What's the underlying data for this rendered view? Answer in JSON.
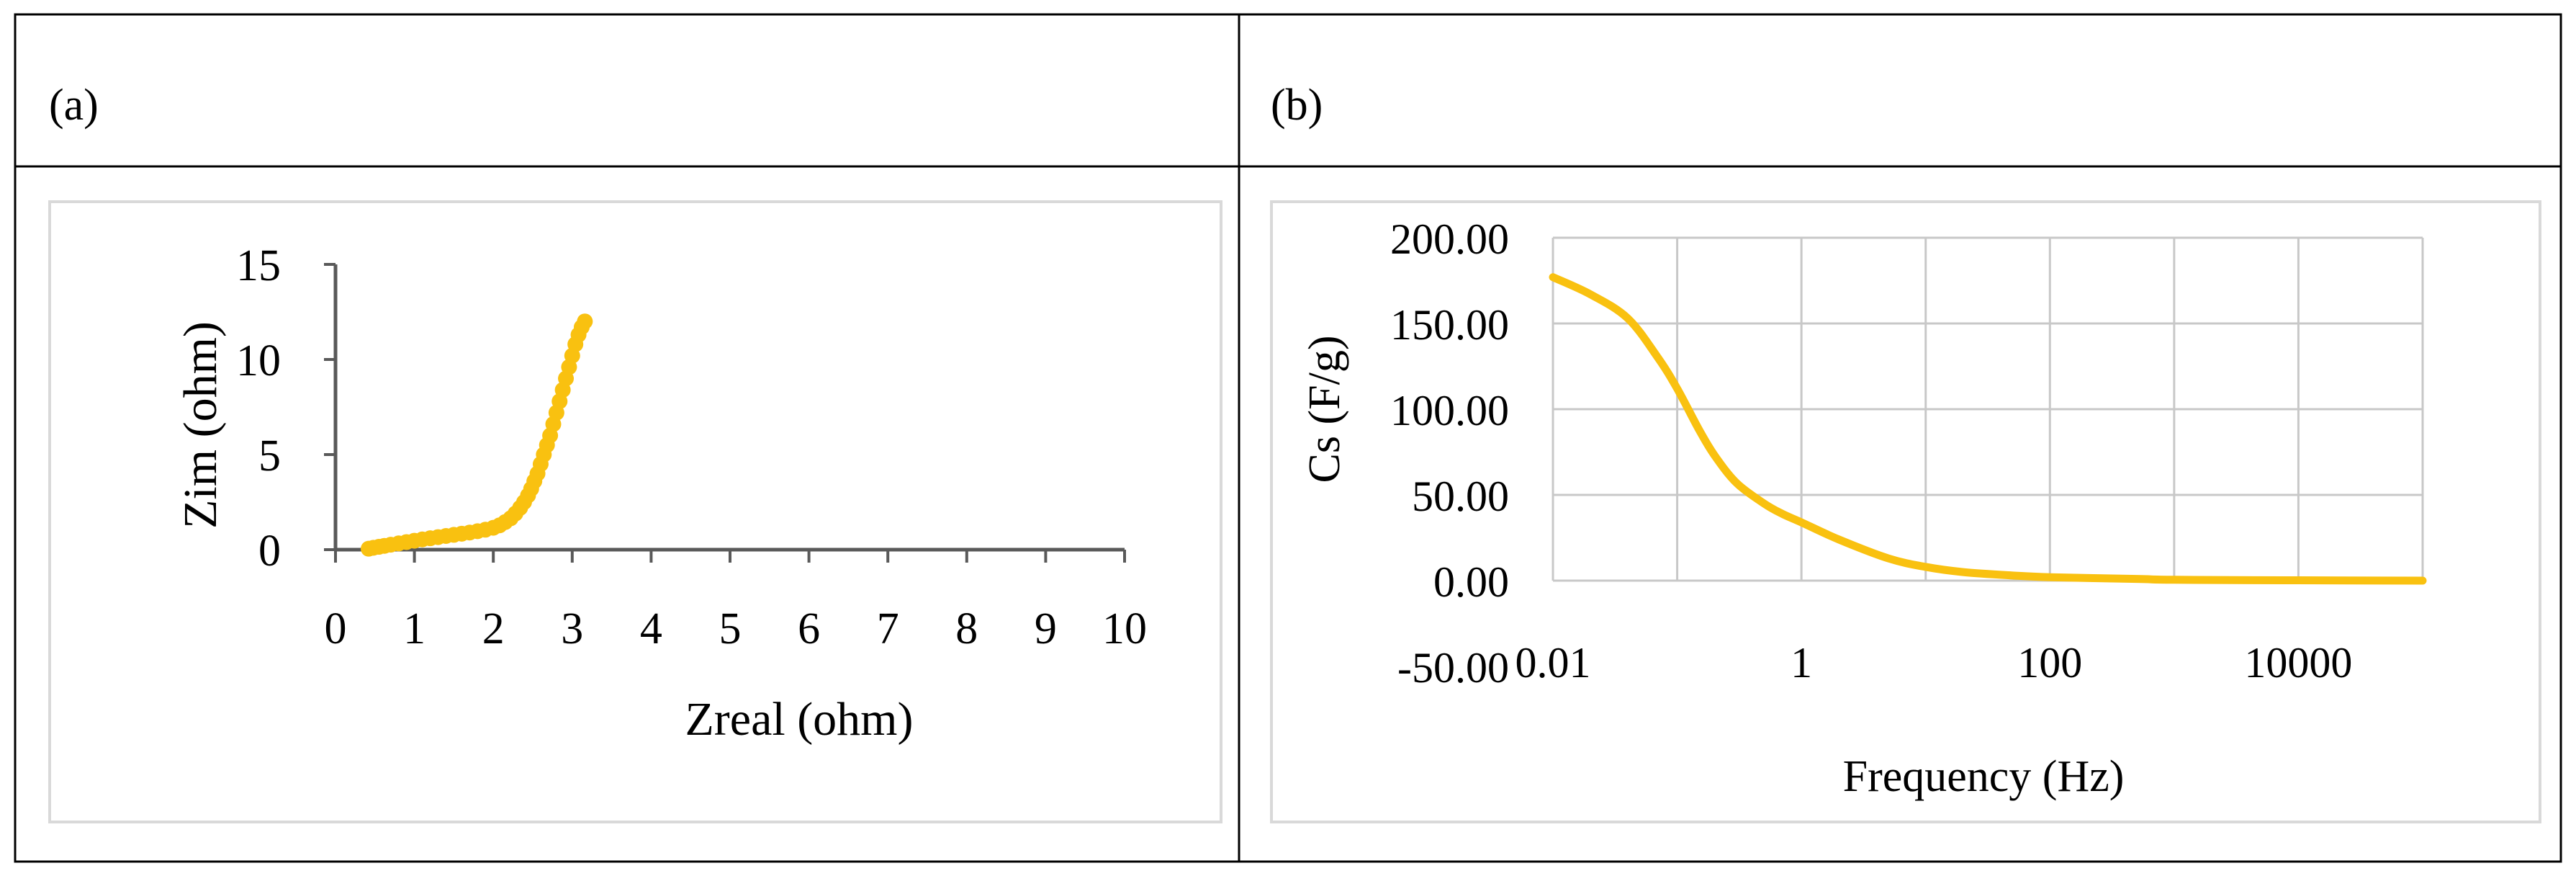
{
  "panels": [
    {
      "label": "(a)"
    },
    {
      "label": "(b)"
    }
  ],
  "colors": {
    "series": "#F9C110",
    "axis": "#595959",
    "grid": "#C8C8C8",
    "frame": "#D9D9D9",
    "text": "#000000",
    "border": "#000000"
  },
  "chart_data": [
    {
      "type": "scatter",
      "title": "",
      "xlabel": "Zreal (ohm)",
      "ylabel": "Zim (ohm)",
      "xlim": [
        0,
        10
      ],
      "ylim": [
        0,
        15
      ],
      "xticks": [
        "0",
        "1",
        "2",
        "3",
        "4",
        "5",
        "6",
        "7",
        "8",
        "9",
        "10"
      ],
      "yticks": [
        "0",
        "5",
        "10",
        "15"
      ],
      "grid": false,
      "series": [
        {
          "x": [
            0.42,
            0.48,
            0.55,
            0.62,
            0.7,
            0.8,
            0.9,
            1.0,
            1.1,
            1.2,
            1.3,
            1.4,
            1.5,
            1.6,
            1.7,
            1.8,
            1.9,
            2.0,
            2.08,
            2.15,
            2.22,
            2.28,
            2.34,
            2.39,
            2.44,
            2.48,
            2.52,
            2.56,
            2.6,
            2.64,
            2.68,
            2.72,
            2.76,
            2.8,
            2.84,
            2.88,
            2.92,
            2.96,
            3.0,
            3.04,
            3.08,
            3.12,
            3.16
          ],
          "y": [
            0.05,
            0.1,
            0.15,
            0.2,
            0.26,
            0.33,
            0.4,
            0.47,
            0.54,
            0.6,
            0.66,
            0.72,
            0.78,
            0.84,
            0.9,
            0.97,
            1.05,
            1.15,
            1.28,
            1.45,
            1.65,
            1.9,
            2.2,
            2.5,
            2.85,
            3.2,
            3.6,
            4.0,
            4.5,
            5.0,
            5.5,
            6.0,
            6.6,
            7.2,
            7.8,
            8.4,
            9.0,
            9.6,
            10.2,
            10.8,
            11.3,
            11.7,
            12.0
          ]
        }
      ]
    },
    {
      "type": "line",
      "title": "",
      "xlabel": "Frequency (Hz)",
      "ylabel": "Cs (F/g)",
      "xscale": "log",
      "xlim": [
        0.01,
        100000
      ],
      "ylim": [
        -50,
        200
      ],
      "xticks": [
        "0.01",
        "1",
        "100",
        "10000"
      ],
      "yticks": [
        "-50.00",
        "0.00",
        "50.00",
        "100.00",
        "150.00",
        "200.00"
      ],
      "grid": true,
      "series": [
        {
          "x": [
            0.01,
            0.02,
            0.04,
            0.07,
            0.1,
            0.15,
            0.2,
            0.3,
            0.5,
            0.7,
            1,
            2,
            5,
            10,
            20,
            50,
            100,
            500,
            1000,
            10000,
            100000
          ],
          "y": [
            177,
            167,
            153,
            130,
            112,
            88,
            73,
            57,
            45,
            39,
            34,
            24,
            13,
            8,
            5,
            3,
            2,
            1,
            0.5,
            0.2,
            0
          ]
        }
      ]
    }
  ]
}
